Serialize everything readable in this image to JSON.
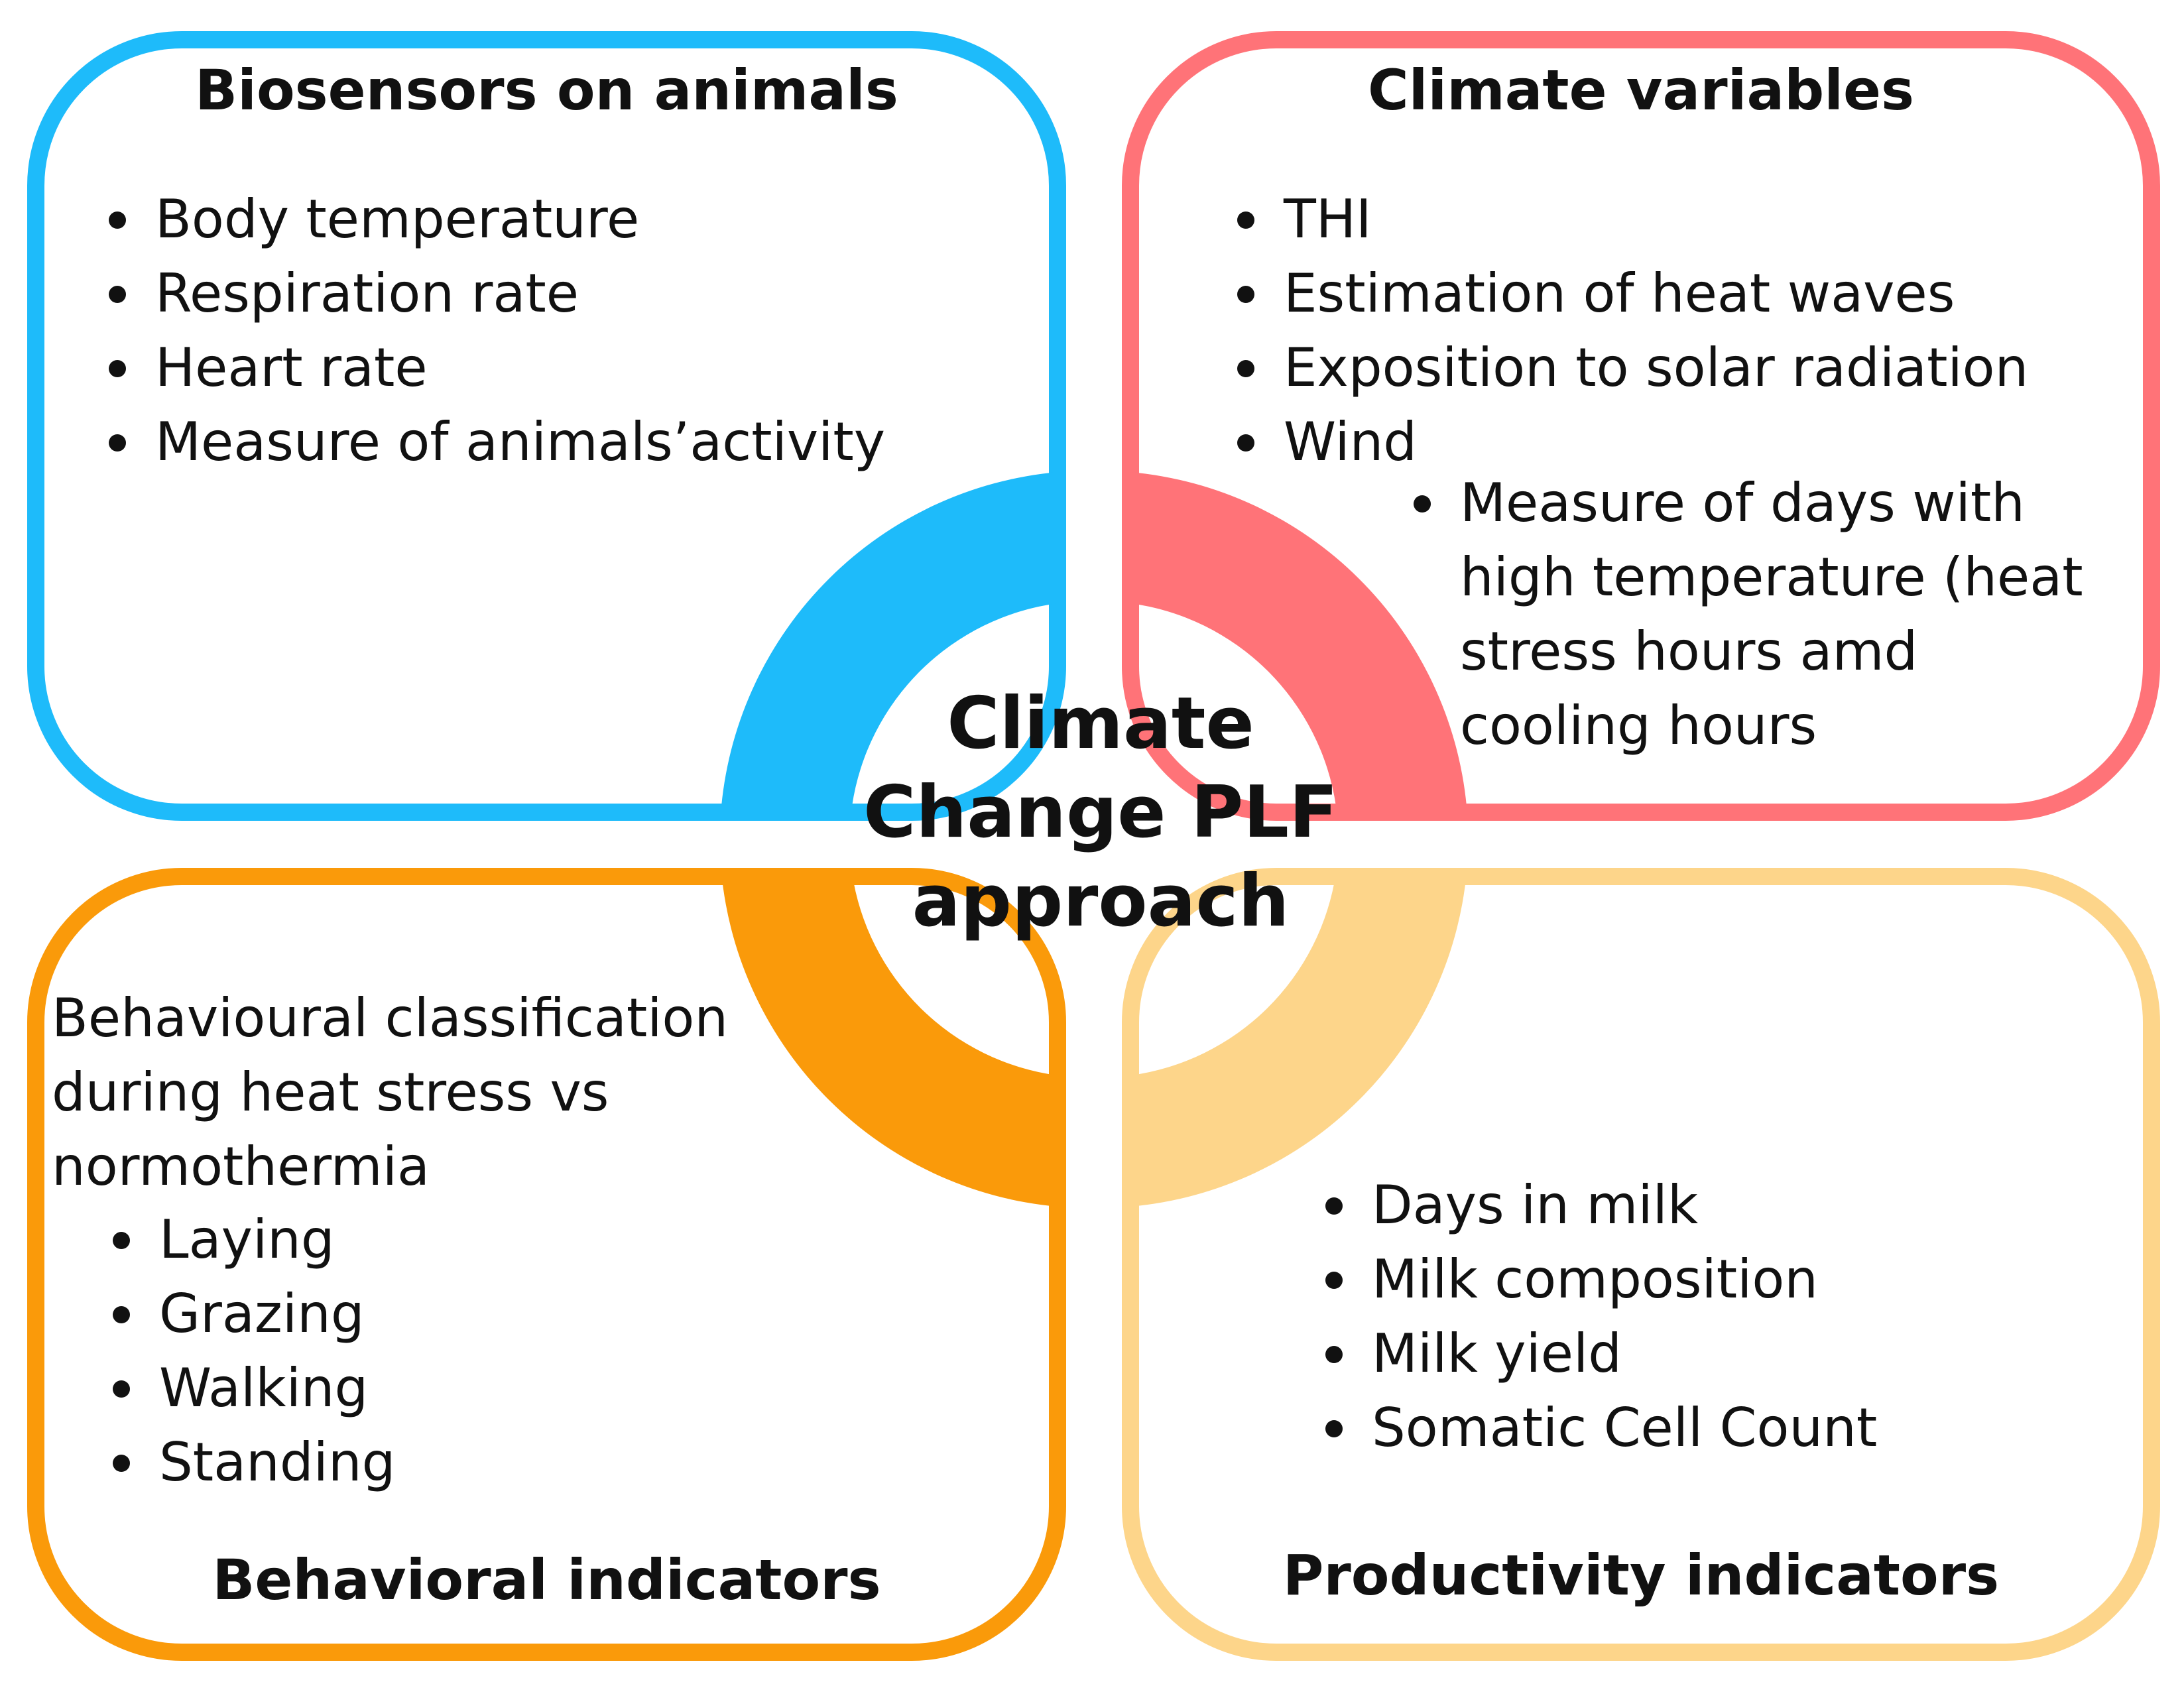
{
  "colors": {
    "biosensors": "#1EBBFA",
    "climate": "#FF7378",
    "behavioral": "#FA9A0A",
    "productivity": "#FDD58A",
    "center_bg": "#ffffff",
    "text": "#111111"
  },
  "center": {
    "lines": [
      "Climate",
      "Change PLF",
      "approach"
    ]
  },
  "biosensors": {
    "title": "Biosensors on animals",
    "items": [
      "Body temperature",
      "Respiration rate",
      "Heart rate",
      "Measure of animals’activity"
    ]
  },
  "climate": {
    "title": "Climate variables",
    "items": [
      "THI",
      "Estimation of heat waves",
      "Exposition to solar radiation",
      "Wind"
    ],
    "subitem": {
      "lines": [
        "Measure of days with",
        "high temperature (heat",
        "stress hours amd",
        "cooling hours"
      ]
    }
  },
  "behavioral": {
    "title": "Behavioral indicators",
    "intro": [
      "Behavioural classification",
      "during heat stress vs",
      "normothermia"
    ],
    "items": [
      "Laying",
      "Grazing",
      "Walking",
      "Standing"
    ]
  },
  "productivity": {
    "title": "Productivity indicators",
    "items": [
      "Days in milk",
      "Milk composition",
      "Milk yield",
      "Somatic Cell Count"
    ]
  }
}
